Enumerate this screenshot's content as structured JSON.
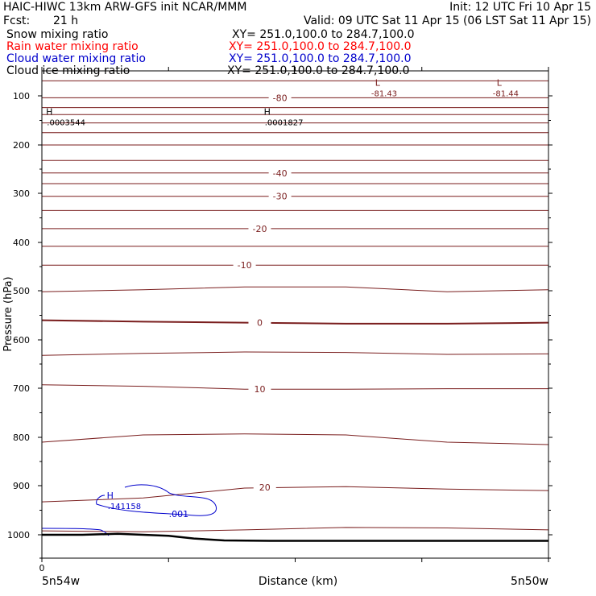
{
  "header": {
    "title_left": "HAIC-HIWC 13km ARW-GFS init   NCAR/MMM",
    "init": "Init: 12 UTC Fri 10 Apr 15",
    "fcst_label": "Fcst:",
    "fcst_value": "21 h",
    "valid": "Valid: 09 UTC Sat 11 Apr 15 (06 LST Sat 11 Apr 15)"
  },
  "fields": [
    {
      "name": "Snow mixing ratio",
      "xy": "XY= 251.0,100.0 to 284.7,100.0",
      "color": "#000000"
    },
    {
      "name": "Rain water mixing ratio",
      "xy": "XY= 251.0,100.0 to 284.7,100.0",
      "color": "#ff0000"
    },
    {
      "name": "Cloud water mixing ratio",
      "xy": "XY= 251.0,100.0 to 284.7,100.0",
      "color": "#0000cc"
    },
    {
      "name": "Cloud ice mixing ratio",
      "xy": "XY= 251.0,100.0 to 284.7,100.0",
      "color": "#000000"
    }
  ],
  "chart_data": {
    "type": "contour-cross-section",
    "ylabel": "Pressure (hPa)",
    "xlabel": "Distance (km)",
    "x_start_label": "5n54w",
    "x_end_label": "5n50w",
    "x_zero_label": "0",
    "y_ticks": [
      100,
      200,
      300,
      400,
      500,
      600,
      700,
      800,
      900,
      1000
    ],
    "ylim": [
      1050,
      70
    ],
    "xlim": [
      0,
      1
    ],
    "extrema": [
      {
        "type": "H",
        "value": ".0003544",
        "x": 0.01,
        "p": 145,
        "color": "#000000"
      },
      {
        "type": "H",
        "value": ".0001827",
        "x": 0.44,
        "p": 145,
        "color": "#000000"
      },
      {
        "type": "L",
        "value": "-81.43",
        "x": 0.65,
        "p": 92,
        "color": "#7a1e1e"
      },
      {
        "type": "L",
        "value": "-81.44",
        "x": 0.89,
        "p": 92,
        "color": "#7a1e1e"
      },
      {
        "type": "H",
        "value": ".141158",
        "x": 0.13,
        "p": 933,
        "color": "#0000cc"
      }
    ],
    "temperature_contours": {
      "color": "#7a1e1e",
      "interval": 5,
      "labels": [
        {
          "value": "-80",
          "x": 0.47,
          "p": 104
        },
        {
          "value": "-40",
          "x": 0.47,
          "p": 258
        },
        {
          "value": "-30",
          "x": 0.47,
          "p": 306
        },
        {
          "value": "-20",
          "x": 0.43,
          "p": 372
        },
        {
          "value": "-10",
          "x": 0.4,
          "p": 447
        },
        {
          "value": "0",
          "x": 0.43,
          "p": 565
        },
        {
          "value": "10",
          "x": 0.43,
          "p": 702
        },
        {
          "value": "20",
          "x": 0.44,
          "p": 903
        }
      ],
      "levels": [
        {
          "value": -80,
          "p": [
            104,
            104,
            104,
            104,
            104,
            104
          ]
        },
        {
          "value": -75,
          "p": [
            82,
            82,
            82,
            82,
            82,
            82
          ]
        },
        {
          "value": -70,
          "p": [
            124,
            124,
            124,
            124,
            124,
            124
          ]
        },
        {
          "value": -65,
          "p": [
            138,
            138,
            138,
            138,
            138,
            138
          ]
        },
        {
          "value": -60,
          "p": [
            155,
            155,
            155,
            155,
            155,
            155
          ]
        },
        {
          "value": -55,
          "p": [
            175,
            175,
            175,
            175,
            175,
            175
          ]
        },
        {
          "value": -50,
          "p": [
            200,
            200,
            200,
            200,
            200,
            200
          ]
        },
        {
          "value": -45,
          "p": [
            232,
            232,
            232,
            232,
            232,
            232
          ]
        },
        {
          "value": -40,
          "p": [
            258,
            258,
            258,
            258,
            258,
            258
          ]
        },
        {
          "value": -35,
          "p": [
            280,
            280,
            280,
            280,
            280,
            280
          ]
        },
        {
          "value": -30,
          "p": [
            306,
            306,
            306,
            306,
            306,
            306
          ]
        },
        {
          "value": -25,
          "p": [
            335,
            335,
            335,
            335,
            335,
            335
          ]
        },
        {
          "value": -20,
          "p": [
            372,
            372,
            372,
            372,
            372,
            372
          ]
        },
        {
          "value": -15,
          "p": [
            408,
            408,
            408,
            408,
            408,
            408
          ]
        },
        {
          "value": -10,
          "p": [
            447,
            447,
            447,
            447,
            447,
            447
          ]
        },
        {
          "value": -5,
          "p": [
            502,
            498,
            492,
            492,
            502,
            498
          ]
        },
        {
          "value": 0,
          "p": [
            560,
            563,
            565,
            567,
            567,
            565
          ]
        },
        {
          "value": 5,
          "p": [
            632,
            628,
            625,
            626,
            630,
            629
          ]
        },
        {
          "value": 10,
          "p": [
            693,
            696,
            702,
            702,
            701,
            701
          ]
        },
        {
          "value": 15,
          "p": [
            810,
            795,
            793,
            795,
            810,
            815
          ]
        },
        {
          "value": 20,
          "p": [
            933,
            925,
            905,
            902,
            907,
            910
          ]
        },
        {
          "value": 25,
          "p": [
            992,
            994,
            990,
            985,
            986,
            990
          ]
        }
      ]
    },
    "cloud_water_contour": {
      "label": ".001",
      "color": "#0000cc",
      "x": 0.27,
      "p": 957
    },
    "terrain": {
      "x": [
        0,
        0.08,
        0.15,
        0.25,
        0.3,
        0.36,
        0.45,
        1
      ],
      "p": [
        1000,
        1000,
        998,
        1002,
        1008,
        1012,
        1013,
        1013
      ]
    }
  }
}
